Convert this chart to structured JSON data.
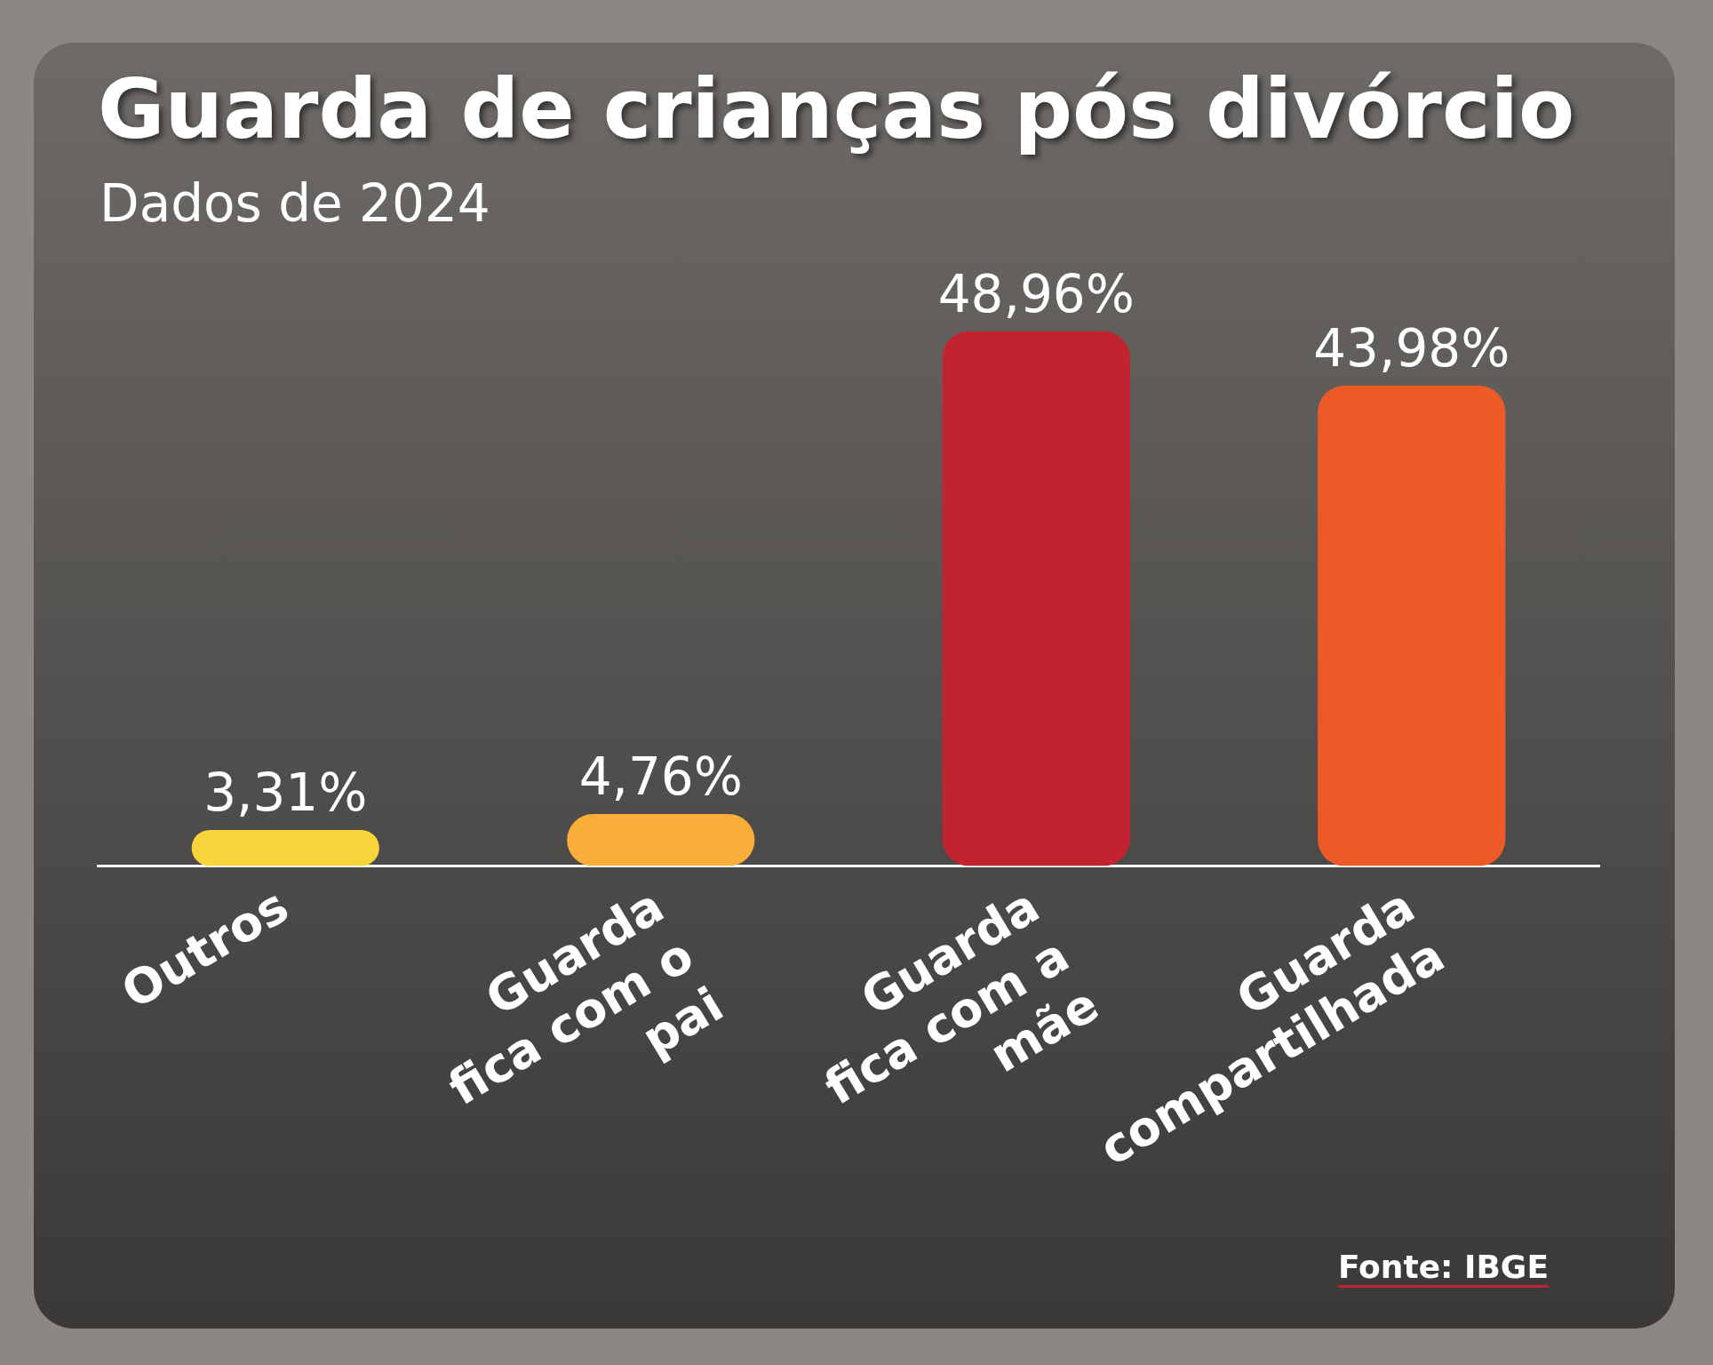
{
  "chart_data": {
    "type": "bar",
    "title": "Guarda de crianças pós divórcio",
    "subtitle": "Dados de 2024",
    "categories": [
      "Outros",
      "Guarda fica com o pai",
      "Guarda fica com a mãe",
      "Guarda compartilhada"
    ],
    "values": [
      3.31,
      4.76,
      48.96,
      43.98
    ],
    "colors": [
      "#f9d43a",
      "#f9ae3a",
      "#c1242f",
      "#ee5a26"
    ],
    "value_labels": [
      "3,31%",
      "4,76%",
      "48,96%",
      "43,98%"
    ],
    "legend": false,
    "grid": false,
    "annotations": [
      "Fonte: IBGE"
    ]
  }
}
